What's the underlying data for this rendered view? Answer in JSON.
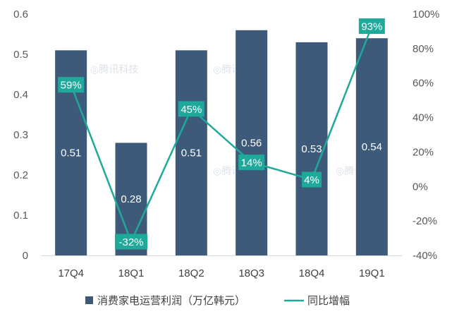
{
  "chart_data": {
    "type": "bar",
    "categories": [
      "17Q4",
      "18Q1",
      "18Q2",
      "18Q3",
      "18Q4",
      "19Q1"
    ],
    "series": [
      {
        "name": "消费家电运营利润（万亿韩元）",
        "type": "bar",
        "axis": "left",
        "values": [
          0.51,
          0.28,
          0.51,
          0.56,
          0.53,
          0.54
        ],
        "labels": [
          "0.51",
          "0.28",
          "0.51",
          "0.56",
          "0.53",
          "0.54"
        ],
        "color": "#3d5a7a"
      },
      {
        "name": "同比增幅",
        "type": "line",
        "axis": "right",
        "values": [
          59,
          -32,
          45,
          14,
          4,
          93
        ],
        "labels": [
          "59%",
          "-32%",
          "45%",
          "14%",
          "4%",
          "93%"
        ],
        "color": "#1fa99a"
      }
    ],
    "y_left": {
      "range": [
        0,
        0.6
      ],
      "ticks": [
        0,
        0.1,
        0.2,
        0.3,
        0.4,
        0.5,
        0.6
      ],
      "tick_labels": [
        "0",
        "0.1",
        "0.2",
        "0.3",
        "0.4",
        "0.5",
        "0.6"
      ]
    },
    "y_right": {
      "range": [
        -40,
        100
      ],
      "ticks": [
        -40,
        -20,
        0,
        20,
        40,
        60,
        80,
        100
      ],
      "tick_labels": [
        "-40%",
        "-20%",
        "0%",
        "20%",
        "40%",
        "60%",
        "80%",
        "100%"
      ]
    },
    "legend": {
      "position": "bottom"
    },
    "grid": false,
    "watermarks": [
      "腾讯科技",
      "腾讯科技",
      "腾讯科技",
      "腾讯科技"
    ]
  }
}
